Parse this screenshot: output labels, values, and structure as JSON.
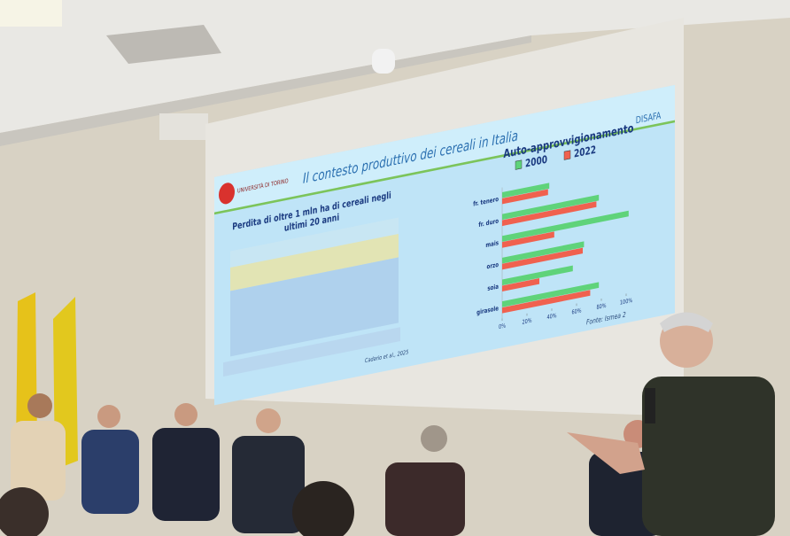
{
  "slide": {
    "logo_left": "UNIVERSITÀ DI TORINO",
    "logo_right": "DISAFA",
    "title": "Il contesto produttivo dei cereali in Italia",
    "left_chart_title": [
      "Perdita di oltre 1 mln ha di cereali negli",
      "ultimi 20 anni"
    ],
    "left_chart_citation": "Cadario et al., 2025",
    "source": "Fonte: Ismea 2",
    "chart_data": {
      "type": "bar",
      "orientation": "horizontal",
      "title": "Auto-approvvigionamento",
      "categories": [
        "fr. tenero",
        "fr. duro",
        "mais",
        "orzo",
        "soia",
        "girasole"
      ],
      "series": [
        {
          "name": "2000",
          "color": "#5fd37a",
          "values": [
            38,
            78,
            102,
            66,
            57,
            78
          ]
        },
        {
          "name": "2022",
          "color": "#f0614f",
          "values": [
            37,
            76,
            42,
            65,
            30,
            71
          ]
        }
      ],
      "xlim": [
        0,
        105
      ],
      "xticks": [
        {
          "value": 0,
          "label": "0%"
        },
        {
          "value": 20,
          "label": "20%"
        },
        {
          "value": 40,
          "label": "40%"
        },
        {
          "value": 60,
          "label": "60%"
        },
        {
          "value": 80,
          "label": "80%"
        },
        {
          "value": 100,
          "label": "100%"
        }
      ]
    }
  }
}
